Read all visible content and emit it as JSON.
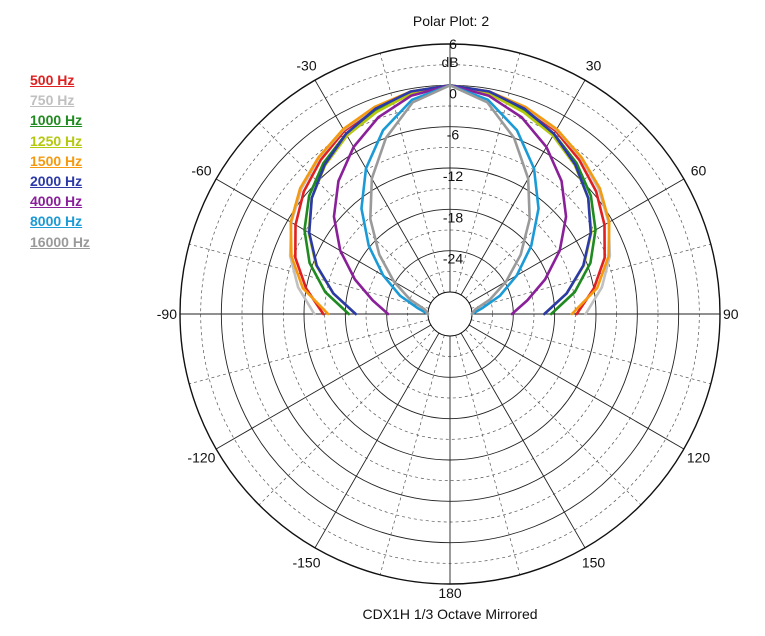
{
  "chart_data": {
    "type": "polar",
    "title": "Polar Plot: 2",
    "footer": "CDX1H   1/3 Octave   Mirrored",
    "unit_label": "dB",
    "radial_range": [
      -30,
      6
    ],
    "radial_ticks": [
      {
        "value": 6,
        "label": "6"
      },
      {
        "value": 0,
        "label": "0"
      },
      {
        "value": -6,
        "label": "-6"
      },
      {
        "value": -12,
        "label": "-12"
      },
      {
        "value": -18,
        "label": "-18"
      },
      {
        "value": -24,
        "label": "-24"
      }
    ],
    "angle_labels": [
      {
        "angle": -30,
        "label": "-30"
      },
      {
        "angle": 30,
        "label": "30"
      },
      {
        "angle": -60,
        "label": "-60"
      },
      {
        "angle": 60,
        "label": "60"
      },
      {
        "angle": -90,
        "label": "-90"
      },
      {
        "angle": 90,
        "label": "90"
      },
      {
        "angle": -120,
        "label": "-120"
      },
      {
        "angle": 120,
        "label": "120"
      },
      {
        "angle": -150,
        "label": "-150"
      },
      {
        "angle": 150,
        "label": "150"
      },
      {
        "angle": 180,
        "label": "180"
      }
    ],
    "mirrored": true,
    "grid": true,
    "legend_position": "top-left",
    "series": [
      {
        "name": "500 Hz",
        "color": "#e02020",
        "angles": [
          0,
          10,
          20,
          30,
          40,
          50,
          60,
          70,
          80,
          90
        ],
        "db": [
          0,
          -0.5,
          -1.5,
          -2.5,
          -4.0,
          -5.5,
          -7.3,
          -9.3,
          -12.0,
          -14.8
        ]
      },
      {
        "name": "750 Hz",
        "color": "#c0c0c0",
        "angles": [
          0,
          10,
          20,
          30,
          40,
          50,
          60,
          70,
          80,
          90
        ],
        "db": [
          0,
          -0.4,
          -1.3,
          -2.3,
          -3.6,
          -5.0,
          -6.6,
          -8.5,
          -10.8,
          -13.5
        ]
      },
      {
        "name": "1000 Hz",
        "color": "#1f8a1f",
        "angles": [
          0,
          10,
          20,
          30,
          40,
          50,
          60,
          70,
          80,
          90
        ],
        "db": [
          0,
          -0.6,
          -1.8,
          -3.0,
          -4.6,
          -6.5,
          -8.8,
          -11.5,
          -14.8,
          -18.5
        ]
      },
      {
        "name": "1250 Hz",
        "color": "#b5c810",
        "angles": [
          0,
          10,
          20,
          30,
          40,
          50,
          60,
          70,
          80,
          90
        ],
        "db": [
          0,
          -0.7,
          -2.0,
          -3.3,
          -5.0,
          -7.0,
          -9.5,
          -12.5,
          -16.0,
          -19.5
        ]
      },
      {
        "name": "1500 Hz",
        "color": "#f59a10",
        "angles": [
          0,
          10,
          20,
          30,
          40,
          50,
          60,
          70,
          80,
          90
        ],
        "db": [
          0,
          -0.4,
          -1.2,
          -2.2,
          -3.5,
          -4.8,
          -6.5,
          -8.7,
          -11.5,
          -15.5
        ]
      },
      {
        "name": "2000 Hz",
        "color": "#2b3aa8",
        "angles": [
          0,
          10,
          20,
          30,
          40,
          50,
          60,
          70,
          80,
          90
        ],
        "db": [
          0,
          -0.4,
          -1.5,
          -3.0,
          -4.9,
          -7.0,
          -9.6,
          -12.6,
          -16.0,
          -19.5
        ]
      },
      {
        "name": "4000 Hz",
        "color": "#8a1f9a",
        "angles": [
          0,
          10,
          20,
          30,
          40,
          50,
          60,
          70,
          80,
          90
        ],
        "db": [
          0,
          -1.0,
          -2.8,
          -5.2,
          -8.0,
          -11.2,
          -14.8,
          -18.5,
          -21.8,
          -24.2
        ]
      },
      {
        "name": "8000 Hz",
        "color": "#1a9ad6",
        "angles": [
          0,
          10,
          20,
          30,
          40,
          50,
          60,
          70,
          80,
          90
        ],
        "db": [
          0,
          -1.6,
          -4.8,
          -8.8,
          -13.2,
          -17.8,
          -22.0,
          -25.5,
          -28.5,
          -30.0
        ]
      },
      {
        "name": "16000 Hz",
        "color": "#9a9a9a",
        "angles": [
          0,
          10,
          20,
          30,
          40,
          50,
          60,
          70,
          80,
          90
        ],
        "db": [
          0,
          -2.0,
          -6.0,
          -10.5,
          -15.2,
          -19.8,
          -23.8,
          -27.0,
          -29.5,
          -30.0
        ]
      }
    ]
  }
}
